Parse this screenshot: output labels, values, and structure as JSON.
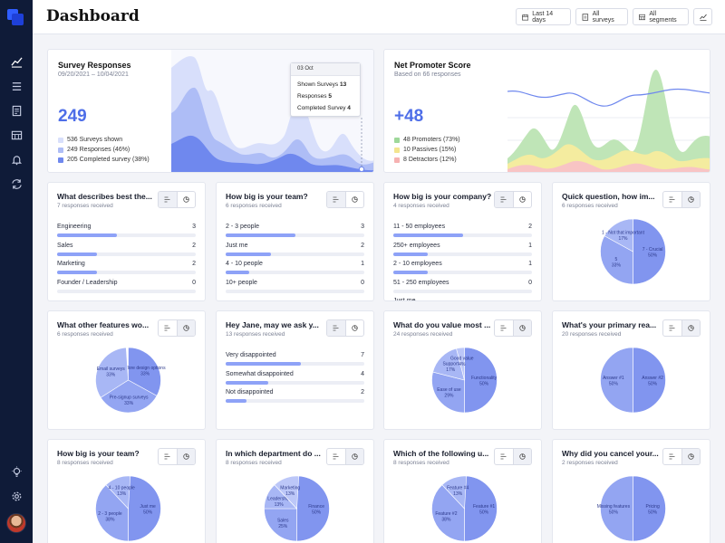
{
  "header": {
    "title": "Dashboard",
    "buttons": [
      {
        "label": "Last 14 days",
        "icon": "calendar-icon"
      },
      {
        "label": "All surveys",
        "icon": "survey-icon"
      },
      {
        "label": "All segments",
        "icon": "segments-icon"
      }
    ]
  },
  "sidebar": {
    "items": [
      "chart-icon",
      "menu-icon",
      "document-icon",
      "table-icon",
      "bell-icon",
      "sync-icon"
    ],
    "bottom": [
      "bulb-icon",
      "gear-icon",
      "avatar"
    ]
  },
  "survey_responses": {
    "title": "Survey Responses",
    "date_range": "09/20/2021 – 10/04/2021",
    "big_number": "249",
    "legend": [
      {
        "label": "536 Surveys shown",
        "color": "#d8dffb"
      },
      {
        "label": "249 Responses (46%)",
        "color": "#aebdf6"
      },
      {
        "label": "205 Completed survey (38%)",
        "color": "#6f88ee"
      }
    ],
    "tooltip": {
      "date": "03 Oct",
      "rows": [
        {
          "label": "Shown Surveys",
          "value": "13"
        },
        {
          "label": "Responses",
          "value": "5"
        },
        {
          "label": "Completed Survey",
          "value": "4"
        }
      ]
    }
  },
  "nps": {
    "title": "Net Promoter Score",
    "subtitle": "Based on 66 responses",
    "big_number": "+48",
    "legend": [
      {
        "label": "48 Promoters (73%)",
        "color": "#9ed89a"
      },
      {
        "label": "10 Passives (15%)",
        "color": "#f3e58f"
      },
      {
        "label": "8 Detractors (12%)",
        "color": "#f6b2b2"
      }
    ]
  },
  "cards": [
    {
      "type": "bars",
      "title": "What describes best the...",
      "sub": "7 responses received",
      "rows": [
        {
          "label": "Engineering",
          "count": "3",
          "frac": 0.43
        },
        {
          "label": "Sales",
          "count": "2",
          "frac": 0.29
        },
        {
          "label": "Marketing",
          "count": "2",
          "frac": 0.29
        },
        {
          "label": "Founder / Leadership",
          "count": "0",
          "frac": 0
        }
      ]
    },
    {
      "type": "bars",
      "title": "How big is your team?",
      "sub": "6 responses received",
      "rows": [
        {
          "label": "2 - 3 people",
          "count": "3",
          "frac": 0.5
        },
        {
          "label": "Just me",
          "count": "2",
          "frac": 0.33
        },
        {
          "label": "4 - 10 people",
          "count": "1",
          "frac": 0.17
        },
        {
          "label": "10+ people",
          "count": "0",
          "frac": 0
        }
      ]
    },
    {
      "type": "bars",
      "title": "How big is your company?",
      "sub": "4 responses received",
      "rows": [
        {
          "label": "11 - 50 employees",
          "count": "2",
          "frac": 0.5
        },
        {
          "label": "250+ employees",
          "count": "1",
          "frac": 0.25
        },
        {
          "label": "2 - 10 employees",
          "count": "1",
          "frac": 0.25
        },
        {
          "label": "51 - 250 employees",
          "count": "0",
          "frac": 0
        },
        {
          "label": "Just me",
          "count": "",
          "frac": 0
        }
      ]
    },
    {
      "type": "pie",
      "title": "Quick question, how im...",
      "sub": "6 responses received",
      "slices": [
        {
          "label": "7 - Crucial",
          "pct": 50
        },
        {
          "label": "5",
          "pct": 33
        },
        {
          "label": "1 - Not that important",
          "pct": 17
        }
      ]
    },
    {
      "type": "pie",
      "title": "What other features wo...",
      "sub": "6 responses received",
      "slices": [
        {
          "label": "More design options",
          "pct": 33
        },
        {
          "label": "Pre-signup surveys",
          "pct": 33
        },
        {
          "label": "Email surveys",
          "pct": 33
        }
      ]
    },
    {
      "type": "bars",
      "title": "Hey Jane, may we ask y...",
      "sub": "13 responses received",
      "rows": [
        {
          "label": "Very disappointed",
          "count": "7",
          "frac": 0.54
        },
        {
          "label": "Somewhat disappointed",
          "count": "4",
          "frac": 0.31
        },
        {
          "label": "Not disappointed",
          "count": "2",
          "frac": 0.15
        }
      ]
    },
    {
      "type": "pie",
      "title": "What do you value most ...",
      "sub": "24 responses received",
      "slices": [
        {
          "label": "Functionality",
          "pct": 50
        },
        {
          "label": "Ease of use",
          "pct": 29
        },
        {
          "label": "Support",
          "pct": 17
        },
        {
          "label": "Good value",
          "pct": 4
        }
      ]
    },
    {
      "type": "pie",
      "title": "What's your primary rea...",
      "sub": "20 responses received",
      "slices": [
        {
          "label": "Answer #2",
          "pct": 50
        },
        {
          "label": "Answer #1",
          "pct": 50
        }
      ]
    },
    {
      "type": "pie",
      "title": "How big is your team?",
      "sub": "8 responses received",
      "slices": [
        {
          "label": "Just me",
          "pct": 50
        },
        {
          "label": "2 - 3 people",
          "pct": 38
        },
        {
          "label": "4 - 10 people",
          "pct": 13
        }
      ]
    },
    {
      "type": "pie",
      "title": "In which department do ...",
      "sub": "8 responses received",
      "slices": [
        {
          "label": "Finance",
          "pct": 50
        },
        {
          "label": "Sales",
          "pct": 25
        },
        {
          "label": "Leadership",
          "pct": 13
        },
        {
          "label": "Marketing",
          "pct": 13
        }
      ]
    },
    {
      "type": "pie",
      "title": "Which of the following u...",
      "sub": "8 responses received",
      "slices": [
        {
          "label": "Feature #1",
          "pct": 50
        },
        {
          "label": "Feature #2",
          "pct": 38
        },
        {
          "label": "Feature #4",
          "pct": 13
        }
      ]
    },
    {
      "type": "pie",
      "title": "Why did you cancel your...",
      "sub": "2 responses received",
      "slices": [
        {
          "label": "Pricing",
          "pct": 50
        },
        {
          "label": "Missing features",
          "pct": 50
        }
      ]
    }
  ]
}
